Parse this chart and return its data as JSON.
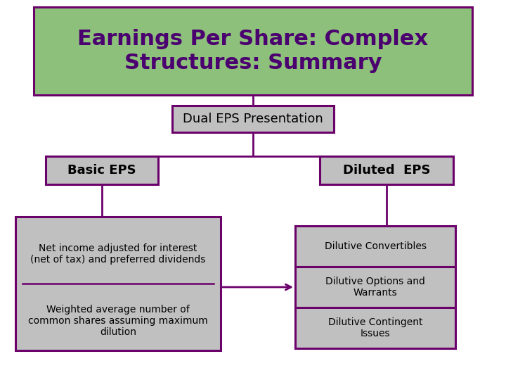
{
  "title": "Earnings Per Share: Complex\nStructures: Summary",
  "title_bg": "#8dc07a",
  "title_border": "#6b006b",
  "title_text_color": "#4b0070",
  "title_fontsize": 22,
  "title_fontweight": "bold",
  "dual_label": "Dual EPS Presentation",
  "dual_bg": "#c0c0c0",
  "dual_border": "#6b006b",
  "basic_label": "Basic EPS",
  "basic_bg": "#c0c0c0",
  "basic_border": "#6b006b",
  "diluted_label": "Diluted  EPS",
  "diluted_bg": "#c0c0c0",
  "diluted_border": "#6b006b",
  "fraction_numerator": "Net income adjusted for interest\n(net of tax) and preferred dividends",
  "fraction_denominator": "Weighted average number of\ncommon shares assuming maximum\ndilution",
  "fraction_bg": "#c0c0c0",
  "fraction_border": "#6b006b",
  "dilutive_items": [
    "Dilutive Convertibles",
    "Dilutive Options and\nWarrants",
    "Dilutive Contingent\nIssues"
  ],
  "dilutive_bg": "#c0c0c0",
  "dilutive_border": "#6b006b",
  "line_color": "#6b006b",
  "line_width": 2.0,
  "bg_color": "#ffffff",
  "text_color": "#000000",
  "body_fontsize": 10,
  "label_fontsize": 13
}
